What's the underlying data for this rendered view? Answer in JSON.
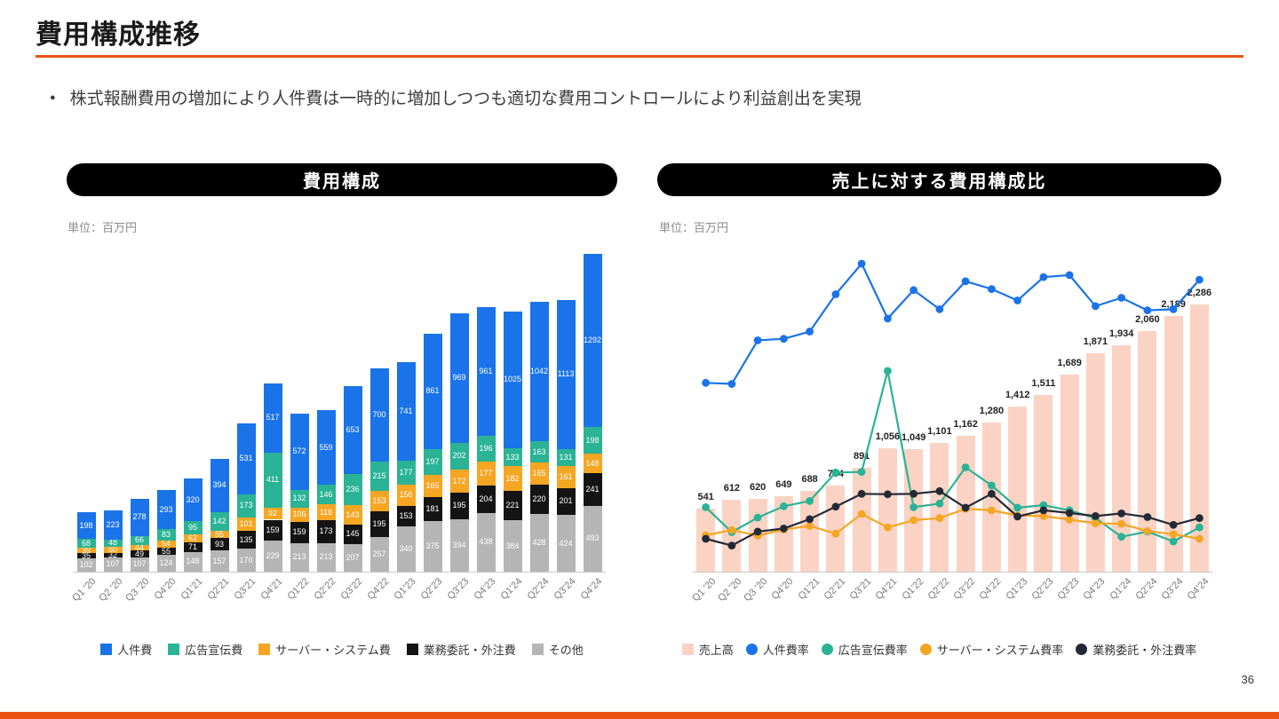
{
  "page": {
    "title": "費用構成推移",
    "bullet": "株式報酬費用の増加により人件費は一時的に増加しつつも適切な費用コントロールにより利益創出を実現",
    "page_number": "36",
    "accent_color": "#ea5514"
  },
  "left_panel": {
    "header": "費用構成",
    "unit_label": "単位：百万円"
  },
  "right_panel": {
    "header": "売上に対する費用構成比",
    "unit_label": "単位：百万円"
  },
  "chart_data": [
    {
      "type": "bar",
      "variant": "stacked",
      "title": "費用構成",
      "unit": "百万円",
      "ylim": [
        0,
        2400
      ],
      "stack_order": "bottom-to-top",
      "categories": [
        "Q1 '20",
        "Q2 '20",
        "Q3 '20",
        "Q4'20",
        "Q1'21",
        "Q2'21",
        "Q3'21",
        "Q4'21",
        "Q1'22",
        "Q2'22",
        "Q3'22",
        "Q4'22",
        "Q1'23",
        "Q2'23",
        "Q3'23",
        "Q4'23",
        "Q1'24",
        "Q2'24",
        "Q3'24",
        "Q4'24"
      ],
      "series": [
        {
          "key": "other",
          "name": "その他",
          "color": "#b5b5b5",
          "values": [
            102,
            107,
            107,
            124,
            148,
            157,
            170,
            229,
            213,
            213,
            207,
            257,
            340,
            375,
            394,
            438,
            384,
            428,
            424,
            493
          ]
        },
        {
          "key": "outsourcing",
          "name": "業務委託・外注費",
          "color": "#141414",
          "values": [
            35,
            32,
            49,
            55,
            71,
            93,
            135,
            159,
            159,
            173,
            145,
            195,
            153,
            181,
            195,
            204,
            221,
            220,
            201,
            241
          ]
        },
        {
          "key": "server",
          "name": "サーバー・システム費",
          "color": "#f5a623",
          "values": [
            39,
            50,
            44,
            54,
            62,
            55,
            101,
            92,
            106,
            116,
            143,
            153,
            156,
            165,
            172,
            177,
            182,
            165,
            161,
            148
          ]
        },
        {
          "key": "advertising",
          "name": "広告宣伝費",
          "color": "#2ab394",
          "values": [
            68,
            48,
            66,
            83,
            95,
            142,
            173,
            411,
            132,
            146,
            236,
            215,
            177,
            197,
            202,
            196,
            133,
            163,
            131,
            198
          ]
        },
        {
          "key": "personnel",
          "name": "人件費",
          "color": "#1a73e8",
          "values": [
            198,
            223,
            278,
            293,
            320,
            394,
            531,
            517,
            572,
            559,
            653,
            700,
            741,
            861,
            969,
            961,
            1025,
            1042,
            1113,
            1292
          ]
        }
      ],
      "legend": [
        {
          "key": "personnel",
          "label": "人件費",
          "color": "#1a73e8",
          "shape": "square"
        },
        {
          "key": "advertising",
          "label": "広告宣伝費",
          "color": "#2ab394",
          "shape": "square"
        },
        {
          "key": "server",
          "label": "サーバー・システム費",
          "color": "#f5a623",
          "shape": "square"
        },
        {
          "key": "outsourcing",
          "label": "業務委託・外注費",
          "color": "#141414",
          "shape": "square"
        },
        {
          "key": "other",
          "label": "その他",
          "color": "#b5b5b5",
          "shape": "square"
        }
      ]
    },
    {
      "type": "bar+line",
      "title": "売上に対する費用構成比",
      "unit": "百万円",
      "bar_axis_max": 2750,
      "line_axis_max_pct": 62,
      "categories": [
        "Q1 '20",
        "Q2 '20",
        "Q3 '20",
        "Q4'20",
        "Q1'21",
        "Q2'21",
        "Q3'21",
        "Q4'21",
        "Q1'22",
        "Q2'22",
        "Q3'22",
        "Q4'22",
        "Q1'23",
        "Q2'23",
        "Q3'23",
        "Q4'23",
        "Q1'24",
        "Q2'24",
        "Q3'24",
        "Q4'24"
      ],
      "bar_series": {
        "key": "revenue",
        "name": "売上高",
        "color": "#fad3c4",
        "values": [
          541,
          612,
          620,
          649,
          688,
          734,
          891,
          1056,
          1049,
          1101,
          1162,
          1280,
          1412,
          1511,
          1689,
          1871,
          1934,
          2060,
          2189,
          2286
        ]
      },
      "line_series": [
        {
          "key": "personnel-rate",
          "name": "人件費率",
          "color": "#1a73e8",
          "values_pct": [
            36.6,
            36.4,
            44.8,
            45.1,
            46.5,
            53.7,
            59.6,
            49.0,
            54.5,
            50.8,
            56.2,
            54.7,
            52.5,
            57.0,
            57.4,
            51.4,
            53.0,
            50.6,
            50.8,
            56.5
          ]
        },
        {
          "key": "advertising-rate",
          "name": "広告宣伝費率",
          "color": "#2ab394",
          "values_pct": [
            12.6,
            7.8,
            10.6,
            12.8,
            13.8,
            19.3,
            19.4,
            38.9,
            12.6,
            13.3,
            20.3,
            16.8,
            12.5,
            13.0,
            12.0,
            10.5,
            6.9,
            7.9,
            6.0,
            8.7
          ]
        },
        {
          "key": "server-rate",
          "name": "サーバー・システム費率",
          "color": "#f5a623",
          "values_pct": [
            7.2,
            8.2,
            7.1,
            8.3,
            9.0,
            7.5,
            11.3,
            8.7,
            10.1,
            10.5,
            12.3,
            12.0,
            11.0,
            10.9,
            10.2,
            9.5,
            9.4,
            8.0,
            7.4,
            6.5
          ]
        },
        {
          "key": "outsourcing-rate",
          "name": "業務委託・外注費率",
          "color": "#232a36",
          "values_pct": [
            6.5,
            5.2,
            7.9,
            8.5,
            10.3,
            12.7,
            15.2,
            15.1,
            15.2,
            15.7,
            12.5,
            15.2,
            10.8,
            12.0,
            11.5,
            10.9,
            11.4,
            10.7,
            9.2,
            10.5
          ]
        }
      ],
      "legend": [
        {
          "key": "revenue",
          "label": "売上高",
          "color": "#fad3c4",
          "shape": "square"
        },
        {
          "key": "personnel-rate",
          "label": "人件費率",
          "color": "#1a73e8",
          "shape": "circle"
        },
        {
          "key": "advertising-rate",
          "label": "広告宣伝費率",
          "color": "#2ab394",
          "shape": "circle"
        },
        {
          "key": "server-rate",
          "label": "サーバー・システム費率",
          "color": "#f5a623",
          "shape": "circle"
        },
        {
          "key": "outsourcing-rate",
          "label": "業務委託・外注費率",
          "color": "#232a36",
          "shape": "circle"
        }
      ]
    }
  ]
}
